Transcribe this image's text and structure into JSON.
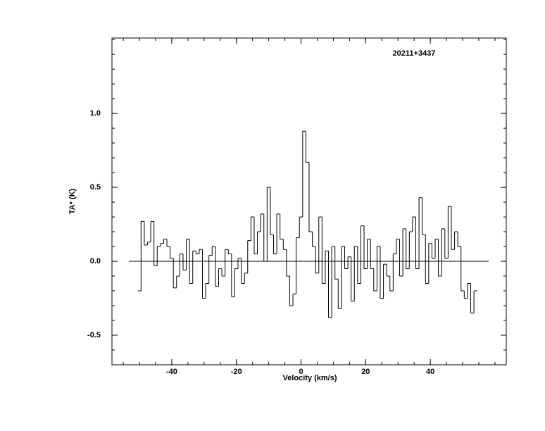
{
  "chart_data": {
    "type": "step",
    "title": "20211+3437",
    "x_label": "Velocity (km/s)",
    "y_label": "TA* (K)",
    "x": [
      -50,
      -49,
      -48,
      -47,
      -46,
      -45,
      -44,
      -43,
      -42,
      -41,
      -40,
      -39,
      -38,
      -37,
      -36,
      -35,
      -34,
      -33,
      -32,
      -31,
      -30,
      -29,
      -28,
      -27,
      -26,
      -25,
      -24,
      -23,
      -22,
      -21,
      -20,
      -19,
      -18,
      -17,
      -16,
      -15,
      -14,
      -13,
      -12,
      -11,
      -10,
      -9,
      -8,
      -7,
      -6,
      -5,
      -4,
      -3,
      -2,
      -1,
      0,
      1,
      2,
      3,
      4,
      5,
      6,
      7,
      8,
      9,
      10,
      11,
      12,
      13,
      14,
      15,
      16,
      17,
      18,
      19,
      20,
      21,
      22,
      23,
      24,
      25,
      26,
      27,
      28,
      29,
      30,
      31,
      32,
      33,
      34,
      35,
      36,
      37,
      38,
      39,
      40,
      41,
      42,
      43,
      44,
      45,
      46,
      47,
      48,
      49,
      50,
      51,
      52,
      53,
      54
    ],
    "values": [
      -0.2,
      0.27,
      0.11,
      0.13,
      0.27,
      -0.03,
      0.1,
      0.12,
      0.15,
      0.1,
      0.02,
      -0.18,
      -0.1,
      0.05,
      -0.06,
      0.15,
      -0.15,
      0.07,
      0.05,
      0.08,
      -0.25,
      -0.15,
      0.04,
      0.1,
      -0.17,
      -0.05,
      -0.1,
      0.08,
      0.05,
      -0.24,
      -0.05,
      0.02,
      -0.15,
      -0.08,
      0.14,
      0.3,
      0.05,
      0.2,
      0.32,
      0.0,
      0.5,
      0.18,
      0.05,
      0.32,
      0.15,
      0.08,
      -0.1,
      -0.3,
      -0.22,
      0.16,
      0.3,
      0.88,
      0.67,
      0.2,
      0.1,
      -0.08,
      0.3,
      -0.15,
      0.07,
      -0.38,
      0.1,
      -0.12,
      -0.32,
      0.1,
      -0.05,
      0.03,
      -0.27,
      0.1,
      -0.15,
      0.24,
      -0.05,
      0.15,
      -0.05,
      -0.2,
      0.1,
      -0.25,
      -0.02,
      -0.1,
      -0.2,
      0.05,
      0.15,
      -0.1,
      0.22,
      -0.05,
      0.2,
      0.3,
      -0.05,
      0.43,
      0.18,
      -0.15,
      0.12,
      0.02,
      0.15,
      -0.1,
      0.22,
      0.02,
      0.37,
      0.08,
      0.2,
      0.1,
      -0.2,
      -0.25,
      -0.15,
      -0.35,
      -0.2
    ],
    "color": "#000000",
    "xlim": [
      -58.5,
      63.5
    ],
    "ylim": [
      -0.7,
      1.51
    ],
    "xticks": [
      -40,
      -20,
      0,
      20,
      40
    ],
    "yticks": [
      {
        "value": -0.5,
        "label": "-0.5"
      },
      {
        "value": 0,
        "label": "0.0"
      },
      {
        "value": 0.5,
        "label": "0.5"
      },
      {
        "value": 1,
        "label": "1.0"
      }
    ]
  }
}
